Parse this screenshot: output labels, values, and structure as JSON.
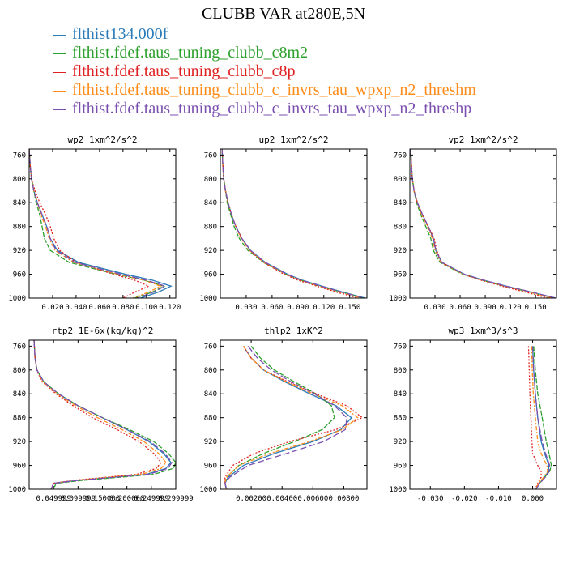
{
  "title": "CLUBB VAR at280E,5N",
  "legend": [
    {
      "label": "flthist134.000f",
      "color": "#2b7bb9"
    },
    {
      "label": "flthist.fdef.taus_tuning_clubb_c8m2",
      "color": "#2ca02c"
    },
    {
      "label": "flthist.fdef.taus_tuning_clubb_c8p",
      "color": "#e02020"
    },
    {
      "label": "flthist.fdef.taus_tuning_clubb_c_invrs_tau_wpxp_n2_threshm",
      "color": "#ff8c1a"
    },
    {
      "label": "flthist.fdef.taus_tuning_clubb_c_invrs_tau_wpxp_n2_threshp",
      "color": "#7a4fb0"
    }
  ],
  "chart_data": [
    {
      "type": "line",
      "title": "wp2  1xm^2/s^2",
      "xlim": [
        0.0,
        0.125
      ],
      "ylim": [
        1000,
        750
      ],
      "xticks": [
        0.02,
        0.04,
        0.06,
        0.08,
        0.1,
        0.12
      ],
      "xtick_labels": [
        "0.020",
        "0.040",
        "0.060",
        "0.080",
        "0.100",
        "0.120"
      ],
      "yticks": [
        760,
        800,
        840,
        880,
        920,
        960,
        1000
      ],
      "y": [
        750,
        780,
        800,
        820,
        840,
        860,
        880,
        900,
        920,
        940,
        960,
        970,
        980,
        990,
        1000
      ],
      "series": [
        {
          "values": [
            0.0,
            0.001,
            0.002,
            0.004,
            0.007,
            0.011,
            0.015,
            0.018,
            0.024,
            0.042,
            0.082,
            0.105,
            0.121,
            0.11,
            0.095
          ]
        },
        {
          "values": [
            0.0,
            0.001,
            0.002,
            0.004,
            0.006,
            0.009,
            0.011,
            0.013,
            0.018,
            0.034,
            0.074,
            0.098,
            0.115,
            0.105,
            0.09
          ]
        },
        {
          "values": [
            0.0,
            0.001,
            0.002,
            0.005,
            0.009,
            0.014,
            0.018,
            0.021,
            0.026,
            0.04,
            0.072,
            0.09,
            0.102,
            0.09,
            0.08
          ]
        },
        {
          "values": [
            0.0,
            0.001,
            0.002,
            0.004,
            0.007,
            0.01,
            0.014,
            0.017,
            0.022,
            0.038,
            0.076,
            0.098,
            0.112,
            0.102,
            0.088
          ]
        },
        {
          "values": [
            0.0,
            0.001,
            0.002,
            0.004,
            0.007,
            0.011,
            0.015,
            0.018,
            0.023,
            0.039,
            0.078,
            0.1,
            0.116,
            0.106,
            0.092
          ]
        }
      ]
    },
    {
      "type": "line",
      "title": "up2  1xm^2/s^2",
      "xlim": [
        0.0,
        0.17
      ],
      "ylim": [
        1000,
        750
      ],
      "xticks": [
        0.03,
        0.06,
        0.09,
        0.12,
        0.15
      ],
      "xtick_labels": [
        "0.030",
        "0.060",
        "0.090",
        "0.120",
        "0.150"
      ],
      "yticks": [
        760,
        800,
        840,
        880,
        920,
        960,
        1000
      ],
      "y": [
        750,
        780,
        800,
        820,
        840,
        860,
        880,
        900,
        920,
        940,
        960,
        970,
        980,
        990,
        1000
      ],
      "series": [
        {
          "values": [
            0.002,
            0.003,
            0.004,
            0.006,
            0.009,
            0.013,
            0.018,
            0.025,
            0.035,
            0.052,
            0.078,
            0.095,
            0.118,
            0.142,
            0.168
          ]
        },
        {
          "values": [
            0.002,
            0.003,
            0.004,
            0.006,
            0.008,
            0.012,
            0.016,
            0.022,
            0.032,
            0.05,
            0.076,
            0.093,
            0.115,
            0.14,
            0.166
          ]
        },
        {
          "values": [
            0.002,
            0.003,
            0.004,
            0.006,
            0.009,
            0.013,
            0.018,
            0.025,
            0.034,
            0.05,
            0.074,
            0.09,
            0.112,
            0.135,
            0.16
          ]
        },
        {
          "values": [
            0.002,
            0.003,
            0.004,
            0.006,
            0.009,
            0.013,
            0.018,
            0.024,
            0.034,
            0.051,
            0.076,
            0.093,
            0.115,
            0.139,
            0.164
          ]
        },
        {
          "values": [
            0.002,
            0.003,
            0.004,
            0.006,
            0.009,
            0.013,
            0.018,
            0.025,
            0.035,
            0.052,
            0.077,
            0.094,
            0.117,
            0.141,
            0.167
          ]
        }
      ]
    },
    {
      "type": "line",
      "title": "vp2  1xm^2/s^2",
      "xlim": [
        0.0,
        0.175
      ],
      "ylim": [
        1000,
        750
      ],
      "xticks": [
        0.03,
        0.06,
        0.09,
        0.12,
        0.15
      ],
      "xtick_labels": [
        "0.030",
        "0.060",
        "0.090",
        "0.120",
        "0.150"
      ],
      "yticks": [
        760,
        800,
        840,
        880,
        920,
        960,
        1000
      ],
      "y": [
        750,
        780,
        800,
        820,
        840,
        860,
        880,
        900,
        920,
        940,
        960,
        970,
        980,
        990,
        1000
      ],
      "series": [
        {
          "values": [
            0.001,
            0.002,
            0.003,
            0.005,
            0.009,
            0.015,
            0.022,
            0.028,
            0.031,
            0.038,
            0.065,
            0.088,
            0.115,
            0.145,
            0.174
          ]
        },
        {
          "values": [
            0.001,
            0.002,
            0.003,
            0.005,
            0.008,
            0.013,
            0.019,
            0.025,
            0.028,
            0.036,
            0.063,
            0.086,
            0.113,
            0.143,
            0.172
          ]
        },
        {
          "values": [
            0.001,
            0.002,
            0.003,
            0.005,
            0.009,
            0.015,
            0.022,
            0.029,
            0.032,
            0.038,
            0.064,
            0.085,
            0.11,
            0.138,
            0.165
          ]
        },
        {
          "values": [
            0.001,
            0.002,
            0.003,
            0.005,
            0.009,
            0.014,
            0.021,
            0.027,
            0.03,
            0.037,
            0.064,
            0.087,
            0.114,
            0.144,
            0.17
          ]
        },
        {
          "values": [
            0.001,
            0.002,
            0.003,
            0.005,
            0.009,
            0.015,
            0.022,
            0.028,
            0.031,
            0.038,
            0.065,
            0.088,
            0.115,
            0.146,
            0.174
          ]
        }
      ]
    },
    {
      "type": "line",
      "title": "rtp2  1E-6x(kg/kg)^2",
      "xlim": [
        0.0,
        0.3
      ],
      "ylim": [
        1000,
        750
      ],
      "xticks": [
        0.05,
        0.1,
        0.15,
        0.2,
        0.25,
        0.3
      ],
      "xtick_labels": [
        "0.049999",
        "0.099999",
        "0.150000",
        "0.200000",
        "0.249999",
        "0.299999"
      ],
      "yticks": [
        760,
        800,
        840,
        880,
        920,
        960,
        1000
      ],
      "y": [
        750,
        780,
        800,
        820,
        840,
        860,
        880,
        900,
        920,
        940,
        955,
        965,
        975,
        985,
        990,
        1000
      ],
      "series": [
        {
          "values": [
            0.01,
            0.012,
            0.016,
            0.03,
            0.06,
            0.1,
            0.15,
            0.2,
            0.245,
            0.275,
            0.29,
            0.28,
            0.24,
            0.1,
            0.05,
            0.045
          ]
        },
        {
          "values": [
            0.01,
            0.012,
            0.016,
            0.03,
            0.06,
            0.1,
            0.15,
            0.205,
            0.255,
            0.285,
            0.3,
            0.295,
            0.255,
            0.11,
            0.055,
            0.05
          ]
        },
        {
          "values": [
            0.01,
            0.012,
            0.015,
            0.027,
            0.055,
            0.09,
            0.13,
            0.18,
            0.225,
            0.255,
            0.27,
            0.26,
            0.22,
            0.09,
            0.05,
            0.045
          ]
        },
        {
          "values": [
            0.01,
            0.012,
            0.016,
            0.028,
            0.058,
            0.095,
            0.14,
            0.19,
            0.235,
            0.265,
            0.28,
            0.27,
            0.23,
            0.095,
            0.05,
            0.045
          ]
        },
        {
          "values": [
            0.01,
            0.012,
            0.016,
            0.03,
            0.06,
            0.1,
            0.15,
            0.2,
            0.248,
            0.278,
            0.292,
            0.284,
            0.245,
            0.1,
            0.05,
            0.045
          ]
        }
      ]
    },
    {
      "type": "line",
      "title": "thlp2  1xK^2",
      "xlim": [
        0.0,
        0.0095
      ],
      "ylim": [
        1000,
        750
      ],
      "xticks": [
        0.002,
        0.004,
        0.006,
        0.008
      ],
      "xtick_labels": [
        "0.00200",
        "0.00400",
        "0.00600",
        "0.00800"
      ],
      "yticks": [
        760,
        800,
        840,
        880,
        920,
        960,
        1000
      ],
      "y": [
        760,
        780,
        800,
        820,
        840,
        860,
        880,
        900,
        920,
        940,
        960,
        980,
        990,
        1000
      ],
      "series": [
        {
          "values": [
            0.0015,
            0.002,
            0.0028,
            0.0042,
            0.0058,
            0.0075,
            0.0085,
            0.0078,
            0.006,
            0.0035,
            0.0015,
            0.0005,
            0.0003,
            0.0004
          ]
        },
        {
          "values": [
            0.002,
            0.0026,
            0.0035,
            0.0048,
            0.0062,
            0.0072,
            0.0074,
            0.0066,
            0.0048,
            0.0028,
            0.0012,
            0.0004,
            0.0003,
            0.0004
          ]
        },
        {
          "values": [
            0.0015,
            0.002,
            0.0028,
            0.0044,
            0.0062,
            0.0082,
            0.0092,
            0.0075,
            0.0045,
            0.0022,
            0.0008,
            0.0003,
            0.0003,
            0.0004
          ]
        },
        {
          "values": [
            0.0015,
            0.002,
            0.0028,
            0.0043,
            0.006,
            0.0079,
            0.0089,
            0.0079,
            0.0058,
            0.0032,
            0.0012,
            0.0004,
            0.0003,
            0.0004
          ]
        },
        {
          "values": [
            0.0018,
            0.0024,
            0.0033,
            0.0046,
            0.0061,
            0.0074,
            0.0082,
            0.0081,
            0.0067,
            0.0043,
            0.0018,
            0.0006,
            0.0003,
            0.0004
          ]
        }
      ]
    },
    {
      "type": "line",
      "title": "wp3  1xm^3/s^3",
      "xlim": [
        -0.036,
        0.007
      ],
      "ylim": [
        1000,
        750
      ],
      "xticks": [
        -0.03,
        -0.02,
        -0.01,
        0.0
      ],
      "xtick_labels": [
        "-0.030",
        "-0.020",
        "-0.010",
        "0.000"
      ],
      "yticks": [
        760,
        800,
        840,
        880,
        920,
        960,
        1000
      ],
      "y": [
        760,
        800,
        840,
        880,
        920,
        940,
        960,
        970,
        980,
        990,
        1000
      ],
      "series": [
        {
          "values": [
            0.0,
            0.0003,
            0.0008,
            0.0015,
            0.0025,
            0.0035,
            0.0048,
            0.0046,
            0.0035,
            0.002,
            0.001
          ]
        },
        {
          "values": [
            0.0003,
            0.0008,
            0.0015,
            0.0028,
            0.004,
            0.0048,
            0.0055,
            0.005,
            0.0035,
            0.002,
            0.001
          ]
        },
        {
          "values": [
            -0.0012,
            -0.001,
            -0.0008,
            -0.0005,
            -0.0002,
            0.0,
            0.0015,
            0.0025,
            0.0025,
            0.0015,
            0.0008
          ]
        },
        {
          "values": [
            -0.0003,
            -0.0001,
            0.0002,
            0.0008,
            0.0015,
            0.0025,
            0.0042,
            0.0044,
            0.0032,
            0.0018,
            0.0008
          ]
        },
        {
          "values": [
            0.0,
            0.0003,
            0.0008,
            0.0015,
            0.0028,
            0.0038,
            0.005,
            0.0049,
            0.0037,
            0.0021,
            0.001
          ]
        }
      ]
    }
  ]
}
